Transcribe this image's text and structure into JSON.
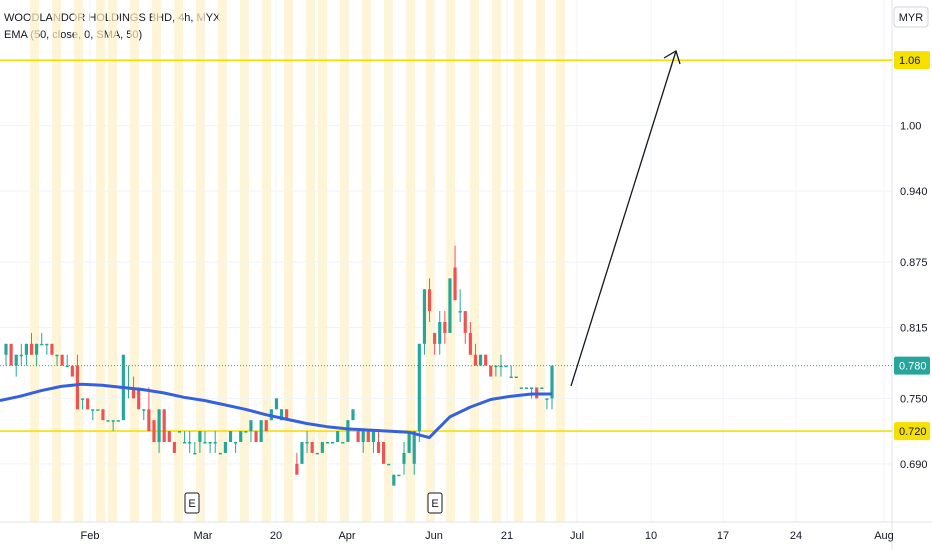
{
  "chart_data": {
    "type": "candlestick",
    "title": "WOODLANDOR HOLDINGS BHD, 4h, MYX",
    "indicator": "EMA (50, close, 0, SMA, 50)",
    "currency": "MYR",
    "ylim": [
      0.655,
      1.095
    ],
    "y_ticks": [
      "1.06",
      "1.00",
      "0.940",
      "0.875",
      "0.815",
      "0.750",
      "0.690"
    ],
    "y_tick_values": [
      1.06,
      1.0,
      0.94,
      0.875,
      0.815,
      0.75,
      0.69
    ],
    "x_ticks": [
      "Feb",
      "Mar",
      "20",
      "Apr",
      "Jun",
      "21",
      "Jul",
      "10",
      "17",
      "24",
      "Aug"
    ],
    "last_price": "0.780",
    "support_label": "0.720",
    "resistance_label": "1.06",
    "horizontal_lines": [
      1.06,
      0.72
    ],
    "event_markers": [
      "E",
      "E"
    ],
    "candles": [
      [
        0.79,
        0.8,
        0.78,
        0.8
      ],
      [
        0.8,
        0.8,
        0.78,
        0.78
      ],
      [
        0.78,
        0.79,
        0.77,
        0.79
      ],
      [
        0.79,
        0.8,
        0.78,
        0.79
      ],
      [
        0.79,
        0.8,
        0.78,
        0.8
      ],
      [
        0.8,
        0.81,
        0.79,
        0.79
      ],
      [
        0.79,
        0.8,
        0.78,
        0.8
      ],
      [
        0.8,
        0.81,
        0.8,
        0.8
      ],
      [
        0.8,
        0.8,
        0.79,
        0.8
      ],
      [
        0.8,
        0.8,
        0.79,
        0.79
      ],
      [
        0.79,
        0.79,
        0.78,
        0.79
      ],
      [
        0.79,
        0.79,
        0.78,
        0.78
      ],
      [
        0.78,
        0.79,
        0.78,
        0.78
      ],
      [
        0.78,
        0.78,
        0.77,
        0.77
      ],
      [
        0.78,
        0.79,
        0.74,
        0.74
      ],
      [
        0.75,
        0.75,
        0.74,
        0.75
      ],
      [
        0.75,
        0.75,
        0.74,
        0.74
      ],
      [
        0.74,
        0.74,
        0.73,
        0.74
      ],
      [
        0.74,
        0.74,
        0.74,
        0.74
      ],
      [
        0.74,
        0.74,
        0.73,
        0.73
      ],
      [
        0.73,
        0.73,
        0.73,
        0.73
      ],
      [
        0.73,
        0.73,
        0.72,
        0.73
      ],
      [
        0.73,
        0.73,
        0.73,
        0.73
      ],
      [
        0.73,
        0.79,
        0.73,
        0.79
      ],
      [
        0.76,
        0.78,
        0.75,
        0.76
      ],
      [
        0.76,
        0.77,
        0.75,
        0.75
      ],
      [
        0.76,
        0.76,
        0.74,
        0.74
      ],
      [
        0.74,
        0.74,
        0.73,
        0.74
      ],
      [
        0.74,
        0.76,
        0.72,
        0.72
      ],
      [
        0.73,
        0.73,
        0.71,
        0.71
      ],
      [
        0.71,
        0.74,
        0.7,
        0.74
      ],
      [
        0.74,
        0.74,
        0.71,
        0.71
      ],
      [
        0.72,
        0.72,
        0.71,
        0.71
      ],
      [
        0.71,
        0.71,
        0.7,
        0.7
      ],
      [
        0.72,
        0.72,
        0.72,
        0.72
      ],
      [
        0.71,
        0.72,
        0.71,
        0.71
      ],
      [
        0.71,
        0.72,
        0.7,
        0.71
      ],
      [
        0.7,
        0.71,
        0.7,
        0.7
      ],
      [
        0.71,
        0.72,
        0.7,
        0.72
      ],
      [
        0.71,
        0.72,
        0.71,
        0.71
      ],
      [
        0.71,
        0.71,
        0.7,
        0.71
      ],
      [
        0.71,
        0.72,
        0.7,
        0.71
      ],
      [
        0.7,
        0.7,
        0.7,
        0.7
      ],
      [
        0.7,
        0.71,
        0.7,
        0.71
      ],
      [
        0.71,
        0.72,
        0.71,
        0.72
      ],
      [
        0.71,
        0.71,
        0.7,
        0.71
      ],
      [
        0.71,
        0.72,
        0.71,
        0.72
      ],
      [
        0.72,
        0.72,
        0.72,
        0.72
      ],
      [
        0.72,
        0.73,
        0.71,
        0.73
      ],
      [
        0.72,
        0.72,
        0.71,
        0.71
      ],
      [
        0.71,
        0.73,
        0.71,
        0.73
      ],
      [
        0.73,
        0.73,
        0.72,
        0.72
      ],
      [
        0.73,
        0.74,
        0.73,
        0.74
      ],
      [
        0.74,
        0.75,
        0.74,
        0.75
      ],
      [
        0.73,
        0.74,
        0.73,
        0.74
      ],
      [
        0.74,
        0.74,
        0.73,
        0.73
      ],
      [
        0.73,
        0.73,
        0.73,
        0.73
      ],
      [
        0.69,
        0.7,
        0.68,
        0.68
      ],
      [
        0.69,
        0.71,
        0.69,
        0.71
      ],
      [
        0.71,
        0.72,
        0.7,
        0.71
      ],
      [
        0.71,
        0.71,
        0.7,
        0.7
      ],
      [
        0.7,
        0.7,
        0.7,
        0.7
      ],
      [
        0.7,
        0.71,
        0.7,
        0.71
      ],
      [
        0.71,
        0.71,
        0.71,
        0.71
      ],
      [
        0.71,
        0.71,
        0.71,
        0.71
      ],
      [
        0.71,
        0.72,
        0.71,
        0.72
      ],
      [
        0.71,
        0.71,
        0.71,
        0.71
      ],
      [
        0.71,
        0.73,
        0.71,
        0.73
      ],
      [
        0.73,
        0.74,
        0.73,
        0.74
      ],
      [
        0.72,
        0.72,
        0.71,
        0.71
      ],
      [
        0.71,
        0.72,
        0.7,
        0.72
      ],
      [
        0.72,
        0.72,
        0.71,
        0.71
      ],
      [
        0.71,
        0.72,
        0.7,
        0.72
      ],
      [
        0.71,
        0.72,
        0.7,
        0.7
      ],
      [
        0.71,
        0.71,
        0.69,
        0.69
      ],
      [
        0.69,
        0.69,
        0.69,
        0.69
      ],
      [
        0.67,
        0.68,
        0.67,
        0.68
      ],
      [
        0.68,
        0.68,
        0.68,
        0.68
      ],
      [
        0.69,
        0.71,
        0.68,
        0.7
      ],
      [
        0.7,
        0.72,
        0.7,
        0.72
      ],
      [
        0.69,
        0.72,
        0.68,
        0.72
      ],
      [
        0.72,
        0.8,
        0.71,
        0.8
      ],
      [
        0.8,
        0.85,
        0.79,
        0.85
      ],
      [
        0.85,
        0.86,
        0.82,
        0.83
      ],
      [
        0.81,
        0.81,
        0.79,
        0.8
      ],
      [
        0.8,
        0.83,
        0.79,
        0.82
      ],
      [
        0.82,
        0.83,
        0.8,
        0.81
      ],
      [
        0.81,
        0.86,
        0.81,
        0.86
      ],
      [
        0.87,
        0.89,
        0.84,
        0.84
      ],
      [
        0.83,
        0.85,
        0.82,
        0.83
      ],
      [
        0.83,
        0.83,
        0.8,
        0.81
      ],
      [
        0.81,
        0.82,
        0.79,
        0.79
      ],
      [
        0.79,
        0.8,
        0.78,
        0.78
      ],
      [
        0.78,
        0.79,
        0.78,
        0.79
      ],
      [
        0.79,
        0.79,
        0.78,
        0.78
      ],
      [
        0.78,
        0.78,
        0.77,
        0.77
      ],
      [
        0.78,
        0.78,
        0.77,
        0.78
      ],
      [
        0.78,
        0.79,
        0.77,
        0.78
      ],
      [
        0.78,
        0.78,
        0.78,
        0.78
      ],
      [
        0.77,
        0.78,
        0.77,
        0.77
      ],
      [
        0.77,
        0.77,
        0.77,
        0.77
      ],
      [
        0.76,
        0.76,
        0.76,
        0.76
      ],
      [
        0.76,
        0.76,
        0.76,
        0.76
      ],
      [
        0.76,
        0.76,
        0.75,
        0.76
      ],
      [
        0.76,
        0.76,
        0.75,
        0.75
      ],
      [
        0.76,
        0.76,
        0.76,
        0.76
      ],
      [
        0.75,
        0.75,
        0.74,
        0.75
      ],
      [
        0.75,
        0.78,
        0.74,
        0.78
      ]
    ],
    "ema": [
      0.748,
      0.752,
      0.757,
      0.761,
      0.763,
      0.762,
      0.76,
      0.758,
      0.755,
      0.751,
      0.748,
      0.744,
      0.74,
      0.735,
      0.731,
      0.727,
      0.724,
      0.722,
      0.721,
      0.72,
      0.719,
      0.714,
      0.733,
      0.742,
      0.749,
      0.752,
      0.754,
      0.754
    ],
    "colors": {
      "up": "#26a69a",
      "down": "#ef5350",
      "ema": "#3561e0",
      "hline": "#f5e000",
      "session": "#fdf1c7",
      "grid": "#f0f3fa",
      "arrow": "#131722",
      "price_badge": "#26a69a"
    }
  }
}
